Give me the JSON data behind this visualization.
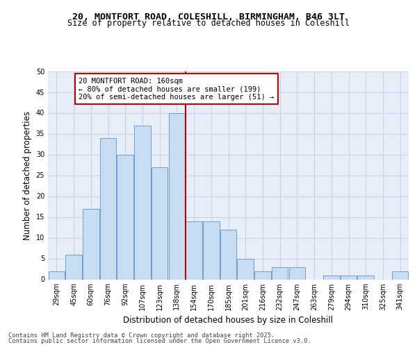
{
  "title_line1": "20, MONTFORT ROAD, COLESHILL, BIRMINGHAM, B46 3LT",
  "title_line2": "Size of property relative to detached houses in Coleshill",
  "xlabel": "Distribution of detached houses by size in Coleshill",
  "ylabel": "Number of detached properties",
  "categories": [
    "29sqm",
    "45sqm",
    "60sqm",
    "76sqm",
    "92sqm",
    "107sqm",
    "123sqm",
    "138sqm",
    "154sqm",
    "170sqm",
    "185sqm",
    "201sqm",
    "216sqm",
    "232sqm",
    "247sqm",
    "263sqm",
    "279sqm",
    "294sqm",
    "310sqm",
    "325sqm",
    "341sqm"
  ],
  "values": [
    2,
    6,
    17,
    34,
    30,
    37,
    27,
    40,
    14,
    14,
    12,
    5,
    2,
    3,
    3,
    0,
    1,
    1,
    1,
    0,
    2
  ],
  "bar_color": "#c9ddf2",
  "bar_edge_color": "#6a9fd8",
  "grid_color": "#c8d4e8",
  "background_color": "#e8eef8",
  "fig_background": "#ffffff",
  "vline_color": "#bb0000",
  "vline_x_index": 8,
  "annotation_text_line1": "20 MONTFORT ROAD: 160sqm",
  "annotation_text_line2": "← 80% of detached houses are smaller (199)",
  "annotation_text_line3": "20% of semi-detached houses are larger (51) →",
  "annotation_box_color": "#cc0000",
  "ylim": [
    0,
    50
  ],
  "yticks": [
    0,
    5,
    10,
    15,
    20,
    25,
    30,
    35,
    40,
    45,
    50
  ],
  "footnote_line1": "Contains HM Land Registry data © Crown copyright and database right 2025.",
  "footnote_line2": "Contains public sector information licensed under the Open Government Licence v3.0.",
  "title_fontsize": 9.5,
  "subtitle_fontsize": 8.5,
  "axis_label_fontsize": 8.5,
  "tick_fontsize": 7,
  "annotation_fontsize": 7.5,
  "footnote_fontsize": 6.2
}
